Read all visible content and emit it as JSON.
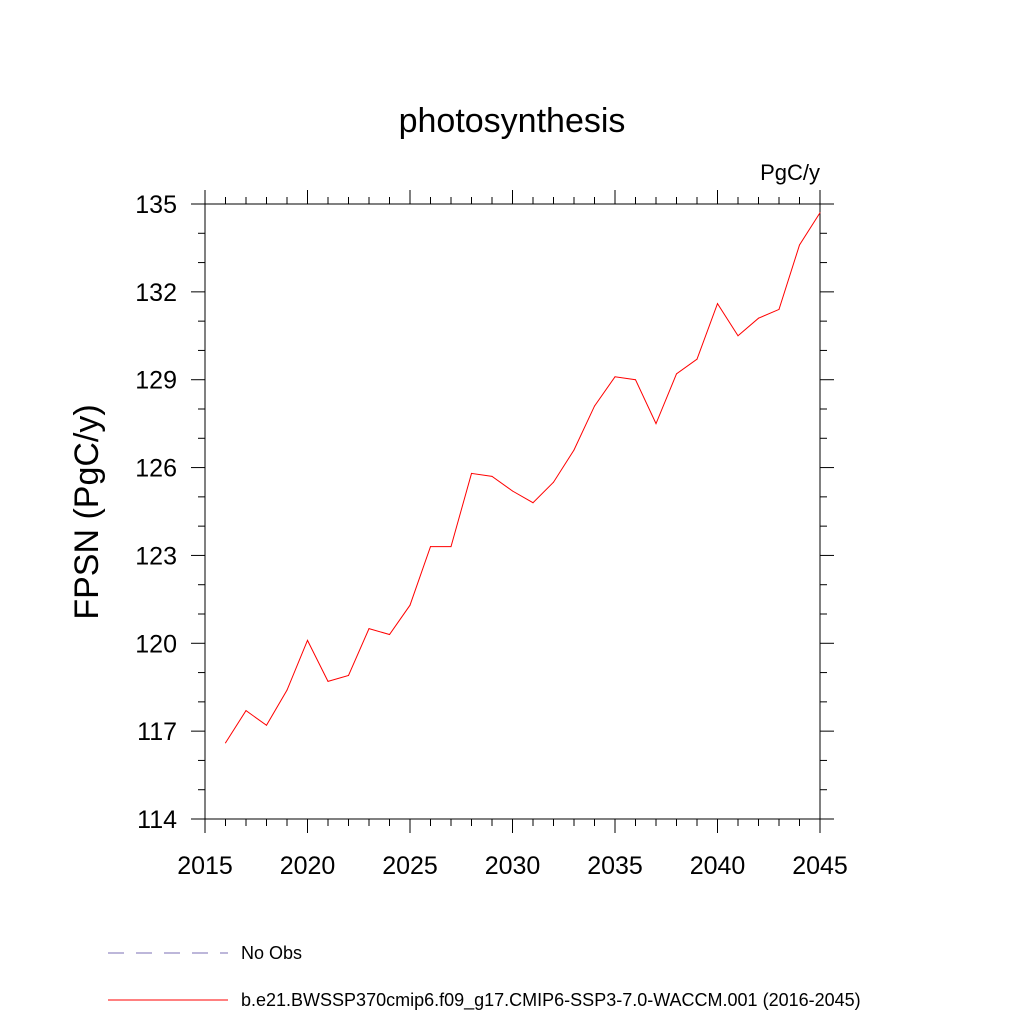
{
  "chart_data": {
    "type": "line",
    "title": "photosynthesis",
    "units_label": "PgC/y",
    "ylabel": "FPSN  (PgC/y)",
    "xlabel": "",
    "xlim": [
      2015,
      2045
    ],
    "ylim": [
      114,
      135
    ],
    "x_ticks": [
      2015,
      2020,
      2025,
      2030,
      2035,
      2040,
      2045
    ],
    "y_ticks": [
      114,
      117,
      120,
      123,
      126,
      129,
      132,
      135
    ],
    "x_minor_step": 1,
    "y_minor_step": 1,
    "grid": false,
    "legend_position": "bottom",
    "legend": [
      {
        "label": "No Obs",
        "color": "#7b6fb5",
        "style": "dashed"
      },
      {
        "label": "b.e21.BWSSP370cmip6.f09_g17.CMIP6-SSP3-7.0-WACCM.001 (2016-2045)",
        "color": "#ff0000",
        "style": "solid"
      }
    ],
    "series": [
      {
        "name": "b.e21.BWSSP370cmip6.f09_g17.CMIP6-SSP3-7.0-WACCM.001 (2016-2045)",
        "color": "#ff0000",
        "x": [
          2016,
          2017,
          2018,
          2019,
          2020,
          2021,
          2022,
          2023,
          2024,
          2025,
          2026,
          2027,
          2028,
          2029,
          2030,
          2031,
          2032,
          2033,
          2034,
          2035,
          2036,
          2037,
          2038,
          2039,
          2040,
          2041,
          2042,
          2043,
          2044,
          2045
        ],
        "y": [
          116.6,
          117.7,
          117.2,
          118.4,
          120.1,
          118.7,
          118.9,
          120.5,
          120.3,
          121.3,
          123.3,
          123.3,
          125.8,
          125.7,
          125.2,
          124.8,
          125.5,
          126.6,
          128.1,
          129.1,
          129.0,
          127.5,
          129.2,
          129.7,
          131.6,
          130.5,
          131.1,
          131.4,
          133.6,
          134.7
        ]
      }
    ]
  }
}
